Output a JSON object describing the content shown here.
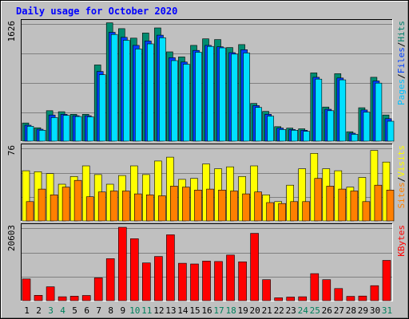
{
  "chart_data": [
    {
      "type": "bar",
      "title": "Daily usage for October 2020",
      "categories": [
        "1",
        "2",
        "3",
        "4",
        "5",
        "6",
        "7",
        "8",
        "9",
        "10",
        "11",
        "12",
        "13",
        "14",
        "15",
        "16",
        "17",
        "18",
        "19",
        "20",
        "21",
        "22",
        "23",
        "24",
        "25",
        "26",
        "27",
        "28",
        "29",
        "30",
        "31"
      ],
      "weekend_days": [
        3,
        4,
        10,
        11,
        17,
        18,
        24,
        25,
        31
      ],
      "panels": [
        {
          "id": "hits-files-pages",
          "ymax": 1626,
          "ymax_label": "1626",
          "axis_label_parts": [
            {
              "text": "Pages",
              "color": "#00c0ff"
            },
            {
              "text": "Files",
              "color": "#0040ff"
            },
            {
              "text": "Hits",
              "color": "#00806c"
            }
          ],
          "series": [
            {
              "name": "Hits",
              "color": "#008c70",
              "values": [
                250,
                185,
                420,
                405,
                370,
                370,
                1050,
                1630,
                1550,
                1420,
                1490,
                1560,
                1230,
                1160,
                1320,
                1410,
                1400,
                1290,
                1330,
                520,
                410,
                200,
                180,
                170,
                940,
                470,
                930,
                130,
                460,
                880,
                360
              ]
            },
            {
              "name": "Files",
              "color": "#0040ff",
              "values": [
                220,
                165,
                360,
                370,
                350,
                350,
                960,
                1500,
                1430,
                1320,
                1380,
                1460,
                1150,
                1090,
                1250,
                1320,
                1300,
                1220,
                1260,
                490,
                370,
                180,
                160,
                150,
                880,
                440,
                870,
                110,
                430,
                830,
                310
              ]
            },
            {
              "name": "Pages",
              "color": "#00e0ff",
              "values": [
                205,
                150,
                325,
                355,
                340,
                335,
                915,
                1470,
                1390,
                1270,
                1340,
                1425,
                1110,
                1060,
                1225,
                1305,
                1285,
                1200,
                1215,
                465,
                345,
                160,
                150,
                135,
                855,
                420,
                845,
                95,
                400,
                800,
                275
              ]
            }
          ]
        },
        {
          "id": "visits-sites",
          "ymax": 76,
          "ymax_label": "76",
          "axis_label_parts": [
            {
              "text": "Sites",
              "color": "#ff8000"
            },
            {
              "text": "Visits",
              "color": "#ffff00"
            }
          ],
          "series": [
            {
              "name": "Visits",
              "color": "#ffff00",
              "values": [
                52,
                51,
                49,
                38,
                46,
                57,
                48,
                38,
                47,
                57,
                48,
                62,
                66,
                43,
                44,
                59,
                54,
                56,
                46,
                57,
                27,
                20,
                37,
                54,
                70,
                54,
                52,
                35,
                45,
                73,
                61
              ]
            },
            {
              "name": "Sites",
              "color": "#ff8000",
              "values": [
                20,
                33,
                27,
                35,
                42,
                25,
                30,
                31,
                31,
                28,
                27,
                26,
                36,
                35,
                32,
                33,
                32,
                31,
                28,
                30,
                19,
                18,
                20,
                20,
                44,
                36,
                33,
                31,
                20,
                37,
                32
              ]
            }
          ]
        },
        {
          "id": "kbytes",
          "ymax": 20603,
          "ymax_label": "20603",
          "axis_label_parts": [
            {
              "text": "KBytes",
              "color": "#ff0000"
            }
          ],
          "series": [
            {
              "name": "KBytes",
              "color": "#ff0000",
              "values": [
                6100,
                1500,
                3900,
                1100,
                1250,
                1450,
                6400,
                11800,
                20603,
                17400,
                10600,
                12400,
                18500,
                10500,
                10300,
                11100,
                11000,
                12800,
                10900,
                18900,
                5900,
                800,
                1000,
                1100,
                7600,
                5900,
                3400,
                1200,
                1300,
                4200,
                11300
              ]
            }
          ]
        }
      ]
    }
  ]
}
